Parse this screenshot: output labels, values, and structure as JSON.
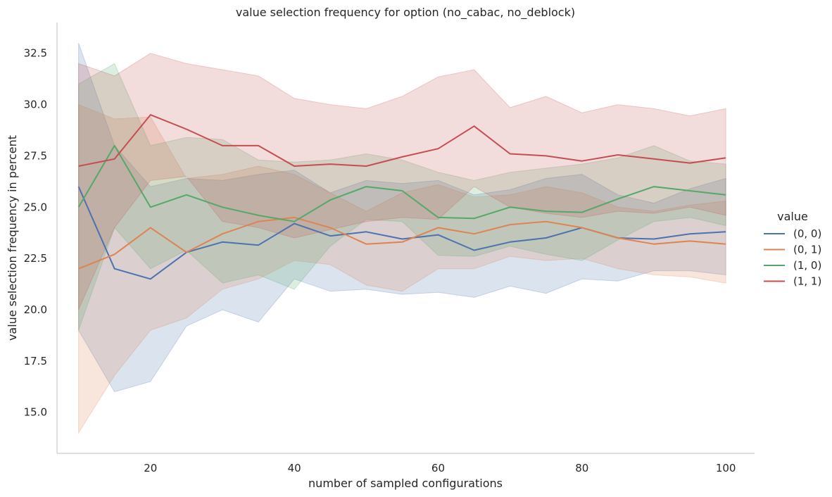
{
  "chart_data": {
    "type": "line",
    "title": "value selection frequency for option (no_cabac, no_deblock)",
    "xlabel": "number of sampled configurations",
    "ylabel": "value selection frequency in percent",
    "xlim": [
      7,
      104
    ],
    "ylim": [
      13,
      34
    ],
    "xticks": [
      20,
      40,
      60,
      80,
      100
    ],
    "yticks": [
      15.0,
      17.5,
      20.0,
      22.5,
      25.0,
      27.5,
      30.0,
      32.5
    ],
    "grid": false,
    "legend": {
      "title": "value",
      "placement": "right"
    },
    "x": [
      10,
      15,
      20,
      25,
      30,
      35,
      40,
      45,
      50,
      55,
      60,
      65,
      70,
      75,
      80,
      85,
      90,
      95,
      100
    ],
    "series": [
      {
        "name": "(0, 0)",
        "color": "#4c72b0",
        "values": [
          26.0,
          22.0,
          21.5,
          22.8,
          23.3,
          23.15,
          24.2,
          23.6,
          23.8,
          23.45,
          23.65,
          22.9,
          23.3,
          23.5,
          24.0,
          23.5,
          23.45,
          23.7,
          23.8
        ],
        "lower": [
          19.0,
          16.0,
          16.5,
          19.2,
          20.0,
          19.4,
          21.5,
          20.9,
          21.0,
          20.75,
          20.85,
          20.6,
          21.15,
          20.8,
          21.5,
          21.4,
          21.9,
          21.9,
          21.7
        ],
        "upper": [
          33.0,
          28.0,
          26.0,
          26.4,
          26.3,
          26.6,
          26.8,
          25.7,
          26.3,
          26.15,
          26.3,
          25.6,
          25.85,
          26.4,
          26.6,
          25.6,
          25.2,
          25.9,
          26.4
        ]
      },
      {
        "name": "(0, 1)",
        "color": "#dd8452",
        "values": [
          22.0,
          22.7,
          24.0,
          22.8,
          23.7,
          24.3,
          24.5,
          24.0,
          23.2,
          23.3,
          24.0,
          23.7,
          24.15,
          24.3,
          24.0,
          23.5,
          23.2,
          23.35,
          23.2
        ],
        "lower": [
          14.0,
          16.8,
          19.0,
          19.6,
          21.0,
          21.5,
          22.4,
          22.2,
          21.2,
          20.9,
          22.0,
          22.0,
          22.6,
          22.4,
          22.5,
          22.0,
          21.7,
          21.6,
          21.3
        ],
        "upper": [
          30.0,
          29.3,
          29.4,
          26.4,
          26.6,
          27.0,
          26.6,
          25.7,
          24.8,
          25.7,
          26.1,
          25.5,
          25.6,
          26.0,
          25.7,
          25.0,
          24.8,
          25.1,
          25.3
        ]
      },
      {
        "name": "(1, 0)",
        "color": "#55a868",
        "values": [
          25.0,
          28.0,
          25.0,
          25.6,
          25.0,
          24.6,
          24.3,
          25.35,
          26.0,
          25.8,
          24.5,
          24.45,
          25.0,
          24.8,
          24.75,
          25.4,
          26.0,
          25.8,
          25.6
        ],
        "lower": [
          19.0,
          24.0,
          22.0,
          22.9,
          21.3,
          21.7,
          21.0,
          23.1,
          24.4,
          24.3,
          22.65,
          22.6,
          23.1,
          22.7,
          22.4,
          23.4,
          24.3,
          24.5,
          24.1
        ],
        "upper": [
          31.0,
          32.0,
          28.0,
          28.4,
          28.3,
          27.3,
          27.2,
          27.3,
          27.6,
          27.3,
          26.7,
          26.3,
          26.7,
          26.9,
          27.1,
          27.4,
          28.0,
          27.25,
          27.1
        ]
      },
      {
        "name": "(1, 1)",
        "color": "#c44e52",
        "values": [
          27.0,
          27.35,
          29.5,
          28.8,
          28.0,
          28.0,
          27.0,
          27.1,
          27.0,
          27.45,
          27.85,
          28.95,
          27.6,
          27.5,
          27.25,
          27.55,
          27.35,
          27.15,
          27.4
        ],
        "lower": [
          20.0,
          24.0,
          26.3,
          26.5,
          24.3,
          24.0,
          23.5,
          23.9,
          24.3,
          24.5,
          24.4,
          26.0,
          25.0,
          24.7,
          24.5,
          24.8,
          24.7,
          25.0,
          24.6
        ],
        "upper": [
          32.0,
          31.4,
          32.5,
          32.0,
          31.7,
          31.4,
          30.3,
          30.0,
          29.8,
          30.4,
          31.35,
          31.7,
          29.85,
          30.4,
          29.6,
          30.0,
          29.8,
          29.45,
          29.8
        ]
      }
    ]
  }
}
